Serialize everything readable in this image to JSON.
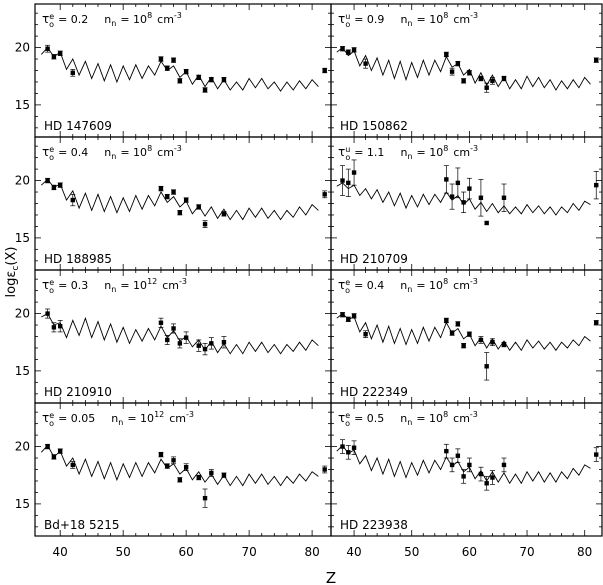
{
  "figure": {
    "xlabel": "Z",
    "ylabel": "logε",
    "ylabel_sub": "c",
    "ylabel_tail": "(X)",
    "xticks": [
      "40",
      "50",
      "60",
      "70",
      "80"
    ],
    "yticks": [
      "15",
      "20"
    ]
  },
  "chart_data": [
    {
      "type": "scatter",
      "star": "HD 147609",
      "param_label": "τ",
      "param_sup": "e",
      "param_sub": "o",
      "param_value": "= 0.2",
      "density_label": "n",
      "density_sub": "n",
      "density_value": "= 10",
      "density_exp": "8",
      "density_unit": "cm",
      "density_unit_exp": "-3",
      "xlim": [
        36,
        83
      ],
      "ylim": [
        12.2,
        23.8
      ],
      "points": [
        [
          38,
          19.9,
          0.3
        ],
        [
          39,
          19.2,
          0.2
        ],
        [
          40,
          19.5,
          0.2
        ],
        [
          42,
          17.8,
          0.3
        ],
        [
          56,
          19.0,
          0.2
        ],
        [
          57,
          18.2,
          0.2
        ],
        [
          58,
          18.9,
          0.2
        ],
        [
          59,
          17.1,
          0.2
        ],
        [
          60,
          17.9,
          0.2
        ],
        [
          62,
          17.4,
          0.2
        ],
        [
          63,
          16.3,
          0.2
        ],
        [
          64,
          17.2,
          0.2
        ],
        [
          66,
          17.2,
          0.2
        ],
        [
          82,
          18.0,
          0.2
        ]
      ]
    },
    {
      "type": "scatter",
      "star": "HD 150862",
      "param_label": "τ",
      "param_sup": "u",
      "param_sub": "o",
      "param_value": "= 0.9",
      "density_label": "n",
      "density_sub": "n",
      "density_value": "= 10",
      "density_exp": "8",
      "density_unit": "cm",
      "density_unit_exp": "-3",
      "xlim": [
        36,
        83
      ],
      "ylim": [
        12.2,
        23.8
      ],
      "points": [
        [
          38,
          19.9,
          0.2
        ],
        [
          39,
          19.6,
          0.2
        ],
        [
          40,
          19.8,
          0.2
        ],
        [
          42,
          18.6,
          0.4
        ],
        [
          56,
          19.4,
          0.2
        ],
        [
          57,
          17.9,
          0.3
        ],
        [
          58,
          18.6,
          0.2
        ],
        [
          59,
          17.1,
          0.2
        ],
        [
          60,
          17.8,
          0.2
        ],
        [
          62,
          17.3,
          0.2
        ],
        [
          63,
          16.5,
          0.4
        ],
        [
          64,
          17.1,
          0.3
        ],
        [
          66,
          17.3,
          0.2
        ],
        [
          82,
          18.9,
          0.2
        ]
      ]
    },
    {
      "type": "scatter",
      "star": "HD 188985",
      "param_label": "τ",
      "param_sup": "e",
      "param_sub": "o",
      "param_value": "= 0.4",
      "density_label": "n",
      "density_sub": "n",
      "density_value": "= 10",
      "density_exp": "8",
      "density_unit": "cm",
      "density_unit_exp": "-3",
      "xlim": [
        36,
        83
      ],
      "ylim": [
        12.2,
        23.8
      ],
      "points": [
        [
          38,
          20.0,
          0.2
        ],
        [
          39,
          19.4,
          0.2
        ],
        [
          40,
          19.6,
          0.2
        ],
        [
          42,
          18.3,
          0.5
        ],
        [
          56,
          19.3,
          0.2
        ],
        [
          57,
          18.6,
          0.2
        ],
        [
          58,
          19.0,
          0.2
        ],
        [
          59,
          17.2,
          0.2
        ],
        [
          60,
          18.3,
          0.2
        ],
        [
          62,
          17.7,
          0.2
        ],
        [
          63,
          16.2,
          0.3
        ],
        [
          66,
          17.1,
          0.2
        ],
        [
          82,
          18.8,
          0.3
        ]
      ]
    },
    {
      "type": "scatter",
      "star": "HD 210709",
      "param_label": "τ",
      "param_sup": "u",
      "param_sub": "o",
      "param_value": "= 1.1",
      "density_label": "n",
      "density_sub": "n",
      "density_value": "= 10",
      "density_exp": "8",
      "density_unit": "cm",
      "density_unit_exp": "-3",
      "xlim": [
        36,
        83
      ],
      "ylim": [
        12.2,
        23.8
      ],
      "points": [
        [
          38,
          20.0,
          1.3
        ],
        [
          39,
          19.8,
          1.2
        ],
        [
          40,
          20.7,
          1.1
        ],
        [
          56,
          20.1,
          1.2
        ],
        [
          57,
          18.6,
          1.1
        ],
        [
          58,
          19.8,
          1.3
        ],
        [
          59,
          18.1,
          0.9
        ],
        [
          60,
          19.3,
          0.9
        ],
        [
          62,
          18.5,
          1.6
        ],
        [
          63,
          16.3,
          0.0
        ],
        [
          66,
          18.5,
          1.2
        ],
        [
          82,
          19.6,
          1.2
        ]
      ]
    },
    {
      "type": "scatter",
      "star": "HD 210910",
      "param_label": "τ",
      "param_sup": "e",
      "param_sub": "o",
      "param_value": "= 0.3",
      "density_label": "n",
      "density_sub": "n",
      "density_value": "= 10",
      "density_exp": "12",
      "density_unit": "cm",
      "density_unit_exp": "-3",
      "xlim": [
        36,
        83
      ],
      "ylim": [
        12.2,
        23.8
      ],
      "points": [
        [
          38,
          20.0,
          0.4
        ],
        [
          39,
          18.8,
          0.4
        ],
        [
          40,
          18.9,
          0.5
        ],
        [
          56,
          19.2,
          0.4
        ],
        [
          57,
          17.7,
          0.4
        ],
        [
          58,
          18.7,
          0.4
        ],
        [
          59,
          17.4,
          0.4
        ],
        [
          60,
          17.9,
          0.5
        ],
        [
          62,
          17.2,
          0.5
        ],
        [
          63,
          16.9,
          0.5
        ],
        [
          64,
          17.4,
          0.5
        ],
        [
          66,
          17.5,
          0.5
        ]
      ]
    },
    {
      "type": "scatter",
      "star": "HD 222349",
      "param_label": "τ",
      "param_sup": "e",
      "param_sub": "o",
      "param_value": "= 0.4",
      "density_label": "n",
      "density_sub": "n",
      "density_value": "= 10",
      "density_exp": "8",
      "density_unit": "cm",
      "density_unit_exp": "-3",
      "xlim": [
        36,
        83
      ],
      "ylim": [
        12.2,
        23.8
      ],
      "points": [
        [
          38,
          19.9,
          0.2
        ],
        [
          39,
          19.5,
          0.2
        ],
        [
          40,
          19.8,
          0.2
        ],
        [
          42,
          18.2,
          0.3
        ],
        [
          56,
          19.4,
          0.2
        ],
        [
          57,
          18.3,
          0.2
        ],
        [
          58,
          19.1,
          0.2
        ],
        [
          59,
          17.2,
          0.2
        ],
        [
          60,
          18.2,
          0.2
        ],
        [
          62,
          17.7,
          0.3
        ],
        [
          63,
          15.4,
          1.2
        ],
        [
          64,
          17.5,
          0.3
        ],
        [
          66,
          17.3,
          0.2
        ],
        [
          82,
          19.2,
          0.2
        ]
      ]
    },
    {
      "type": "scatter",
      "star": "Bd+18 5215",
      "param_label": "τ",
      "param_sup": "e",
      "param_sub": "o",
      "param_value": "= 0.05",
      "density_label": "n",
      "density_sub": "n",
      "density_value": "= 10",
      "density_exp": "12",
      "density_unit": "cm",
      "density_unit_exp": "-3",
      "xlim": [
        36,
        83
      ],
      "ylim": [
        12.2,
        23.8
      ],
      "points": [
        [
          38,
          20.0,
          0.2
        ],
        [
          39,
          19.1,
          0.2
        ],
        [
          40,
          19.6,
          0.2
        ],
        [
          42,
          18.4,
          0.3
        ],
        [
          56,
          19.3,
          0.2
        ],
        [
          57,
          18.3,
          0.2
        ],
        [
          58,
          18.8,
          0.3
        ],
        [
          59,
          17.1,
          0.2
        ],
        [
          60,
          18.2,
          0.3
        ],
        [
          62,
          17.3,
          0.2
        ],
        [
          63,
          15.5,
          0.8
        ],
        [
          64,
          17.7,
          0.3
        ],
        [
          66,
          17.5,
          0.2
        ],
        [
          82,
          18.0,
          0.3
        ]
      ]
    },
    {
      "type": "scatter",
      "star": "HD 223938",
      "param_label": "τ",
      "param_sup": "e",
      "param_sub": "o",
      "param_value": "= 0.5",
      "density_label": "n",
      "density_sub": "n",
      "density_value": "= 10",
      "density_exp": "8",
      "density_unit": "cm",
      "density_unit_exp": "-3",
      "xlim": [
        36,
        83
      ],
      "ylim": [
        12.2,
        23.8
      ],
      "points": [
        [
          38,
          20.0,
          0.6
        ],
        [
          39,
          19.5,
          0.6
        ],
        [
          40,
          19.9,
          0.6
        ],
        [
          56,
          19.6,
          0.6
        ],
        [
          57,
          18.4,
          0.6
        ],
        [
          58,
          19.2,
          0.6
        ],
        [
          59,
          17.4,
          0.6
        ],
        [
          60,
          18.4,
          0.6
        ],
        [
          62,
          17.6,
          0.6
        ],
        [
          63,
          16.8,
          0.6
        ],
        [
          64,
          17.3,
          0.6
        ],
        [
          66,
          18.4,
          0.6
        ],
        [
          82,
          19.3,
          0.6
        ]
      ]
    }
  ],
  "model": {
    "z": [
      37,
      38,
      39,
      40,
      41,
      42,
      43,
      44,
      45,
      46,
      47,
      48,
      49,
      50,
      51,
      52,
      53,
      54,
      55,
      56,
      57,
      58,
      59,
      60,
      61,
      62,
      63,
      64,
      65,
      66,
      67,
      68,
      69,
      70,
      71,
      72,
      73,
      74,
      75,
      76,
      77,
      78,
      79,
      80,
      81
    ],
    "panels": [
      [
        19.4,
        20.0,
        19.2,
        19.6,
        18.1,
        19.0,
        17.6,
        18.8,
        17.3,
        18.6,
        17.1,
        18.5,
        17.0,
        18.4,
        17.2,
        18.5,
        17.3,
        18.4,
        17.6,
        18.8,
        18.0,
        18.4,
        17.4,
        17.9,
        16.8,
        17.6,
        16.6,
        17.4,
        16.4,
        17.2,
        16.3,
        17.0,
        16.3,
        17.3,
        16.5,
        17.3,
        16.4,
        17.0,
        16.2,
        17.0,
        16.3,
        17.1,
        16.4,
        17.2,
        16.6
      ],
      [
        19.6,
        20.0,
        19.3,
        19.7,
        18.4,
        19.3,
        18.0,
        19.1,
        17.6,
        18.9,
        17.3,
        18.8,
        17.2,
        18.7,
        17.4,
        18.9,
        17.6,
        18.9,
        17.9,
        19.2,
        18.3,
        18.6,
        17.6,
        18.1,
        16.9,
        17.8,
        16.7,
        17.6,
        16.6,
        17.4,
        16.4,
        17.2,
        16.4,
        17.5,
        16.6,
        17.4,
        16.5,
        17.2,
        16.3,
        17.1,
        16.4,
        17.2,
        16.5,
        17.4,
        16.8
      ],
      [
        19.6,
        20.1,
        19.4,
        19.7,
        18.3,
        19.1,
        17.6,
        18.9,
        17.4,
        18.8,
        17.3,
        18.6,
        17.2,
        18.5,
        17.3,
        18.7,
        17.5,
        18.7,
        17.8,
        19.0,
        18.1,
        18.6,
        17.7,
        18.2,
        17.1,
        17.8,
        16.9,
        17.7,
        16.7,
        17.5,
        16.6,
        17.4,
        16.6,
        17.6,
        16.8,
        17.6,
        16.7,
        17.4,
        16.6,
        17.4,
        16.8,
        17.7,
        17.0,
        17.9,
        17.4
      ],
      [
        19.5,
        19.8,
        19.3,
        19.6,
        18.7,
        19.3,
        18.4,
        19.2,
        18.1,
        19.0,
        17.8,
        18.9,
        17.6,
        18.7,
        17.7,
        18.8,
        17.9,
        18.8,
        18.1,
        19.0,
        18.3,
        18.7,
        17.9,
        18.4,
        17.5,
        18.1,
        17.3,
        18.0,
        17.2,
        17.8,
        17.1,
        17.7,
        17.1,
        17.9,
        17.2,
        17.8,
        17.1,
        17.7,
        17.0,
        17.7,
        17.2,
        18.0,
        17.4,
        18.2,
        17.9
      ],
      [
        19.7,
        20.0,
        19.0,
        19.2,
        17.9,
        19.4,
        18.1,
        19.6,
        17.9,
        19.3,
        17.7,
        19.1,
        17.5,
        18.8,
        17.4,
        18.6,
        17.6,
        18.7,
        17.7,
        18.9,
        17.9,
        18.5,
        17.6,
        18.0,
        17.1,
        17.7,
        16.8,
        17.6,
        16.6,
        17.4,
        16.5,
        17.3,
        16.5,
        17.5,
        16.7,
        17.5,
        16.6,
        17.3,
        16.5,
        17.3,
        16.7,
        17.5,
        16.8,
        17.7,
        17.2
      ],
      [
        19.6,
        20.0,
        19.5,
        19.7,
        18.4,
        19.2,
        17.8,
        19.0,
        17.5,
        18.9,
        17.4,
        18.7,
        17.3,
        18.6,
        17.4,
        18.8,
        17.6,
        18.8,
        17.9,
        19.2,
        18.3,
        18.7,
        17.8,
        18.2,
        17.2,
        17.9,
        17.0,
        17.8,
        16.9,
        17.6,
        16.8,
        17.5,
        16.8,
        17.7,
        17.0,
        17.6,
        16.9,
        17.5,
        16.8,
        17.5,
        17.0,
        17.7,
        17.2,
        18.0,
        17.6
      ],
      [
        19.5,
        20.1,
        19.1,
        19.6,
        18.3,
        19.0,
        17.6,
        18.9,
        17.4,
        18.7,
        17.2,
        18.6,
        17.1,
        18.5,
        17.3,
        18.6,
        17.4,
        18.6,
        17.7,
        18.9,
        18.1,
        18.5,
        17.6,
        18.1,
        17.1,
        17.8,
        16.9,
        17.6,
        16.7,
        17.5,
        16.6,
        17.4,
        16.6,
        17.6,
        16.8,
        17.6,
        16.7,
        17.4,
        16.6,
        17.4,
        16.8,
        17.6,
        17.0,
        17.8,
        17.4
      ],
      [
        19.6,
        20.1,
        19.4,
        19.7,
        18.5,
        19.2,
        17.9,
        19.0,
        17.6,
        18.9,
        17.4,
        18.7,
        17.3,
        18.6,
        17.5,
        18.8,
        17.7,
        18.8,
        18.0,
        19.1,
        18.3,
        18.7,
        17.8,
        18.2,
        17.2,
        17.9,
        17.0,
        17.8,
        16.9,
        17.7,
        16.8,
        17.6,
        16.8,
        17.8,
        17.0,
        17.8,
        16.9,
        17.7,
        16.9,
        17.8,
        17.2,
        18.1,
        17.5,
        18.4,
        18.1
      ]
    ]
  }
}
